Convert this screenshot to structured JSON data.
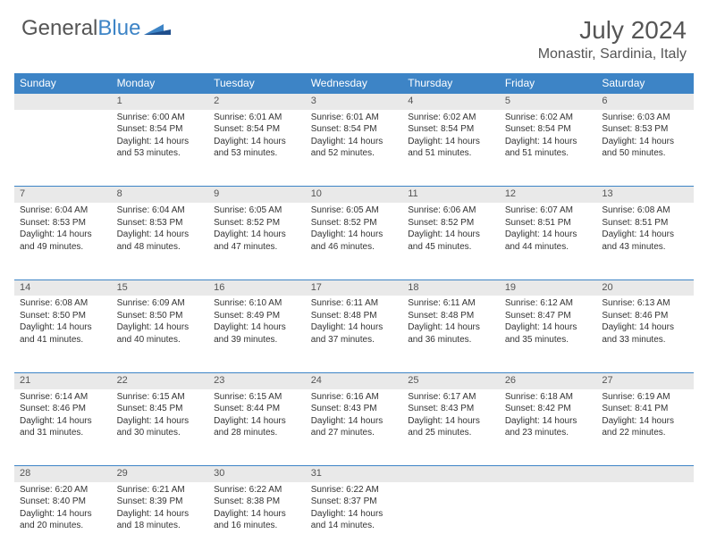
{
  "brand": {
    "part1": "General",
    "part2": "Blue"
  },
  "title": "July 2024",
  "location": "Monastir, Sardinia, Italy",
  "colors": {
    "header_bg": "#3d84c6",
    "daynum_bg": "#e9e9e9",
    "text": "#333333",
    "muted": "#555555",
    "white": "#ffffff"
  },
  "day_headers": [
    "Sunday",
    "Monday",
    "Tuesday",
    "Wednesday",
    "Thursday",
    "Friday",
    "Saturday"
  ],
  "weeks": [
    {
      "nums": [
        "",
        "1",
        "2",
        "3",
        "4",
        "5",
        "6"
      ],
      "cells": [
        null,
        {
          "sunrise": "Sunrise: 6:00 AM",
          "sunset": "Sunset: 8:54 PM",
          "dl1": "Daylight: 14 hours",
          "dl2": "and 53 minutes."
        },
        {
          "sunrise": "Sunrise: 6:01 AM",
          "sunset": "Sunset: 8:54 PM",
          "dl1": "Daylight: 14 hours",
          "dl2": "and 53 minutes."
        },
        {
          "sunrise": "Sunrise: 6:01 AM",
          "sunset": "Sunset: 8:54 PM",
          "dl1": "Daylight: 14 hours",
          "dl2": "and 52 minutes."
        },
        {
          "sunrise": "Sunrise: 6:02 AM",
          "sunset": "Sunset: 8:54 PM",
          "dl1": "Daylight: 14 hours",
          "dl2": "and 51 minutes."
        },
        {
          "sunrise": "Sunrise: 6:02 AM",
          "sunset": "Sunset: 8:54 PM",
          "dl1": "Daylight: 14 hours",
          "dl2": "and 51 minutes."
        },
        {
          "sunrise": "Sunrise: 6:03 AM",
          "sunset": "Sunset: 8:53 PM",
          "dl1": "Daylight: 14 hours",
          "dl2": "and 50 minutes."
        }
      ]
    },
    {
      "nums": [
        "7",
        "8",
        "9",
        "10",
        "11",
        "12",
        "13"
      ],
      "cells": [
        {
          "sunrise": "Sunrise: 6:04 AM",
          "sunset": "Sunset: 8:53 PM",
          "dl1": "Daylight: 14 hours",
          "dl2": "and 49 minutes."
        },
        {
          "sunrise": "Sunrise: 6:04 AM",
          "sunset": "Sunset: 8:53 PM",
          "dl1": "Daylight: 14 hours",
          "dl2": "and 48 minutes."
        },
        {
          "sunrise": "Sunrise: 6:05 AM",
          "sunset": "Sunset: 8:52 PM",
          "dl1": "Daylight: 14 hours",
          "dl2": "and 47 minutes."
        },
        {
          "sunrise": "Sunrise: 6:05 AM",
          "sunset": "Sunset: 8:52 PM",
          "dl1": "Daylight: 14 hours",
          "dl2": "and 46 minutes."
        },
        {
          "sunrise": "Sunrise: 6:06 AM",
          "sunset": "Sunset: 8:52 PM",
          "dl1": "Daylight: 14 hours",
          "dl2": "and 45 minutes."
        },
        {
          "sunrise": "Sunrise: 6:07 AM",
          "sunset": "Sunset: 8:51 PM",
          "dl1": "Daylight: 14 hours",
          "dl2": "and 44 minutes."
        },
        {
          "sunrise": "Sunrise: 6:08 AM",
          "sunset": "Sunset: 8:51 PM",
          "dl1": "Daylight: 14 hours",
          "dl2": "and 43 minutes."
        }
      ]
    },
    {
      "nums": [
        "14",
        "15",
        "16",
        "17",
        "18",
        "19",
        "20"
      ],
      "cells": [
        {
          "sunrise": "Sunrise: 6:08 AM",
          "sunset": "Sunset: 8:50 PM",
          "dl1": "Daylight: 14 hours",
          "dl2": "and 41 minutes."
        },
        {
          "sunrise": "Sunrise: 6:09 AM",
          "sunset": "Sunset: 8:50 PM",
          "dl1": "Daylight: 14 hours",
          "dl2": "and 40 minutes."
        },
        {
          "sunrise": "Sunrise: 6:10 AM",
          "sunset": "Sunset: 8:49 PM",
          "dl1": "Daylight: 14 hours",
          "dl2": "and 39 minutes."
        },
        {
          "sunrise": "Sunrise: 6:11 AM",
          "sunset": "Sunset: 8:48 PM",
          "dl1": "Daylight: 14 hours",
          "dl2": "and 37 minutes."
        },
        {
          "sunrise": "Sunrise: 6:11 AM",
          "sunset": "Sunset: 8:48 PM",
          "dl1": "Daylight: 14 hours",
          "dl2": "and 36 minutes."
        },
        {
          "sunrise": "Sunrise: 6:12 AM",
          "sunset": "Sunset: 8:47 PM",
          "dl1": "Daylight: 14 hours",
          "dl2": "and 35 minutes."
        },
        {
          "sunrise": "Sunrise: 6:13 AM",
          "sunset": "Sunset: 8:46 PM",
          "dl1": "Daylight: 14 hours",
          "dl2": "and 33 minutes."
        }
      ]
    },
    {
      "nums": [
        "21",
        "22",
        "23",
        "24",
        "25",
        "26",
        "27"
      ],
      "cells": [
        {
          "sunrise": "Sunrise: 6:14 AM",
          "sunset": "Sunset: 8:46 PM",
          "dl1": "Daylight: 14 hours",
          "dl2": "and 31 minutes."
        },
        {
          "sunrise": "Sunrise: 6:15 AM",
          "sunset": "Sunset: 8:45 PM",
          "dl1": "Daylight: 14 hours",
          "dl2": "and 30 minutes."
        },
        {
          "sunrise": "Sunrise: 6:15 AM",
          "sunset": "Sunset: 8:44 PM",
          "dl1": "Daylight: 14 hours",
          "dl2": "and 28 minutes."
        },
        {
          "sunrise": "Sunrise: 6:16 AM",
          "sunset": "Sunset: 8:43 PM",
          "dl1": "Daylight: 14 hours",
          "dl2": "and 27 minutes."
        },
        {
          "sunrise": "Sunrise: 6:17 AM",
          "sunset": "Sunset: 8:43 PM",
          "dl1": "Daylight: 14 hours",
          "dl2": "and 25 minutes."
        },
        {
          "sunrise": "Sunrise: 6:18 AM",
          "sunset": "Sunset: 8:42 PM",
          "dl1": "Daylight: 14 hours",
          "dl2": "and 23 minutes."
        },
        {
          "sunrise": "Sunrise: 6:19 AM",
          "sunset": "Sunset: 8:41 PM",
          "dl1": "Daylight: 14 hours",
          "dl2": "and 22 minutes."
        }
      ]
    },
    {
      "nums": [
        "28",
        "29",
        "30",
        "31",
        "",
        "",
        ""
      ],
      "cells": [
        {
          "sunrise": "Sunrise: 6:20 AM",
          "sunset": "Sunset: 8:40 PM",
          "dl1": "Daylight: 14 hours",
          "dl2": "and 20 minutes."
        },
        {
          "sunrise": "Sunrise: 6:21 AM",
          "sunset": "Sunset: 8:39 PM",
          "dl1": "Daylight: 14 hours",
          "dl2": "and 18 minutes."
        },
        {
          "sunrise": "Sunrise: 6:22 AM",
          "sunset": "Sunset: 8:38 PM",
          "dl1": "Daylight: 14 hours",
          "dl2": "and 16 minutes."
        },
        {
          "sunrise": "Sunrise: 6:22 AM",
          "sunset": "Sunset: 8:37 PM",
          "dl1": "Daylight: 14 hours",
          "dl2": "and 14 minutes."
        },
        null,
        null,
        null
      ]
    }
  ]
}
